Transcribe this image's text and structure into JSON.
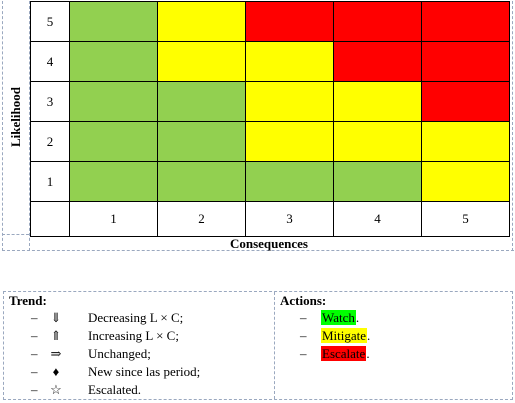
{
  "colors": {
    "green": "#92d050",
    "yellow": "#ffff00",
    "red": "#ff0000",
    "guide": "#9aa8bf"
  },
  "matrix": {
    "y_axis_label": "Likelihood",
    "x_axis_label": "Consequences",
    "likelihood_levels": [
      "5",
      "4",
      "3",
      "2",
      "1"
    ],
    "consequence_levels": [
      "1",
      "2",
      "3",
      "4",
      "5"
    ],
    "rows": [
      [
        "green",
        "yellow",
        "red",
        "red",
        "red"
      ],
      [
        "green",
        "yellow",
        "yellow",
        "red",
        "red"
      ],
      [
        "green",
        "green",
        "yellow",
        "yellow",
        "red"
      ],
      [
        "green",
        "green",
        "yellow",
        "yellow",
        "yellow"
      ],
      [
        "green",
        "green",
        "green",
        "green",
        "yellow"
      ]
    ]
  },
  "legend": {
    "trend": {
      "title": "Trend:",
      "items": [
        {
          "dash": "–",
          "symbol": "⇓",
          "label": "Decreasing L × C;"
        },
        {
          "dash": "–",
          "symbol": "⇑",
          "label": "Increasing L × C;"
        },
        {
          "dash": "–",
          "symbol": "⇒",
          "label": "Unchanged;"
        },
        {
          "dash": "–",
          "symbol": "♦",
          "label": "New since las period;"
        },
        {
          "dash": "–",
          "symbol": "☆",
          "label": "Escalated."
        }
      ]
    },
    "actions": {
      "title": "Actions:",
      "items": [
        {
          "dash": "–",
          "label": "Watch",
          "punct": ".",
          "color": "#00ff00"
        },
        {
          "dash": "–",
          "label": "Mitigate",
          "punct": ".",
          "color": "#ffff00"
        },
        {
          "dash": "–",
          "label": "Escalate",
          "punct": ".",
          "color": "#ff0000"
        }
      ]
    }
  }
}
